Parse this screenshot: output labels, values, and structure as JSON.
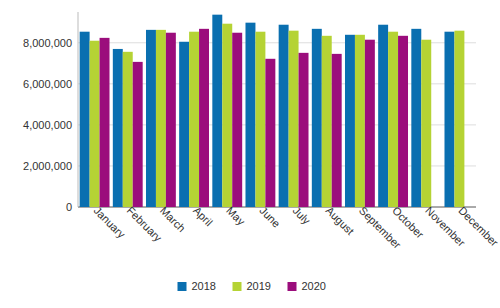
{
  "chart_data": {
    "type": "bar",
    "categories": [
      "January",
      "February",
      "March",
      "April",
      "May",
      "June",
      "July",
      "August",
      "September",
      "October",
      "November",
      "December"
    ],
    "series": [
      {
        "name": "2018",
        "color": "#0a6fb0",
        "values": [
          8540000,
          7700000,
          8630000,
          8050000,
          9370000,
          8980000,
          8880000,
          8680000,
          8390000,
          8880000,
          8680000,
          8540000
        ]
      },
      {
        "name": "2019",
        "color": "#b5d334",
        "values": [
          8100000,
          7560000,
          8630000,
          8540000,
          8930000,
          8540000,
          8590000,
          8340000,
          8390000,
          8540000,
          8150000,
          8590000
        ]
      },
      {
        "name": "2020",
        "color": "#9b0d7c",
        "values": [
          8240000,
          7070000,
          8490000,
          8680000,
          8490000,
          7220000,
          7510000,
          7460000,
          8150000,
          8340000,
          null,
          null
        ]
      }
    ],
    "ylim": [
      0,
      9500000
    ],
    "yticks": [
      0,
      {
        "value": 2000000,
        "label": "2,000,000"
      },
      {
        "value": 4000000,
        "label": "4,000,000"
      },
      {
        "value": 6000000,
        "label": "6,000,000"
      },
      {
        "value": 8000000,
        "label": "8,000,000"
      }
    ],
    "grid": true,
    "legend": "bottom"
  }
}
